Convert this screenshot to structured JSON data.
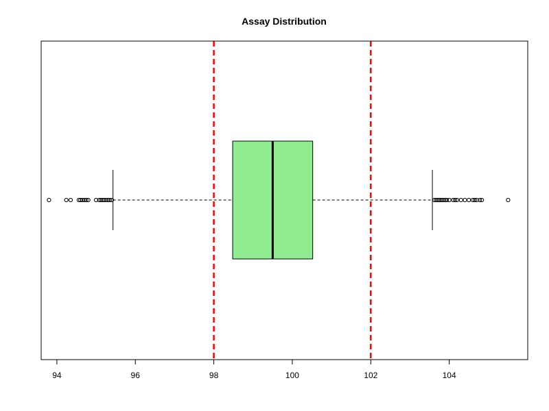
{
  "chart_data": {
    "type": "boxplot",
    "orientation": "horizontal",
    "title": "Assay Distribution",
    "xlabel": "",
    "ylabel": "",
    "xlim": [
      93.6,
      106.0
    ],
    "x_ticks": [
      94,
      96,
      98,
      100,
      102,
      104
    ],
    "x_tick_labels": [
      "94",
      "96",
      "98",
      "100",
      "102",
      "104"
    ],
    "grid": false,
    "box": {
      "whisker_low": 95.43,
      "q1": 98.48,
      "median": 99.5,
      "q3": 100.52,
      "whisker_high": 103.57,
      "fill_color": "#90EE90",
      "outliers_low": [
        93.8,
        94.24,
        94.35,
        94.56,
        94.6,
        94.65,
        94.7,
        94.75,
        94.8,
        95.0,
        95.08,
        95.12,
        95.16,
        95.2,
        95.25,
        95.3,
        95.35,
        95.4
      ],
      "outliers_high": [
        103.62,
        103.66,
        103.7,
        103.74,
        103.78,
        103.82,
        103.86,
        103.9,
        103.94,
        104.0,
        104.1,
        104.15,
        104.2,
        104.3,
        104.4,
        104.5,
        104.6,
        104.65,
        104.7,
        104.78,
        104.83,
        105.5
      ]
    },
    "reference_lines": [
      {
        "x": 98,
        "color": "#FF0000",
        "style": "dashed"
      },
      {
        "x": 102,
        "color": "#FF0000",
        "style": "dashed"
      }
    ]
  }
}
